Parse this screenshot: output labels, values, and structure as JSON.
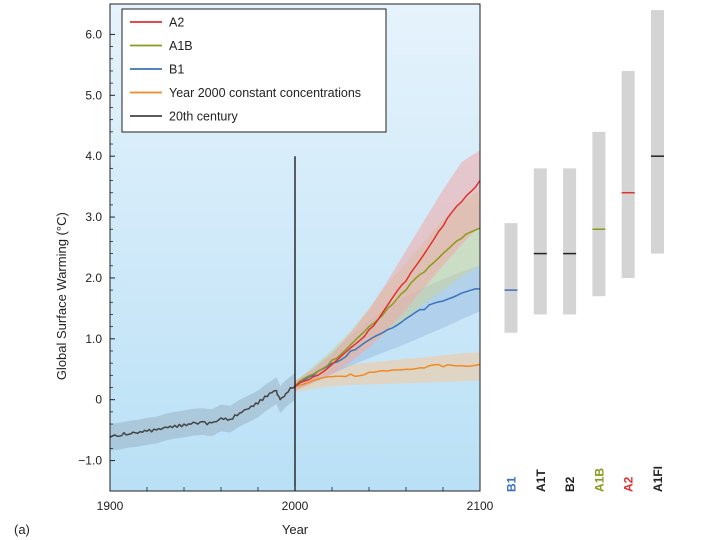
{
  "chart_data": {
    "type": "line",
    "panel_label": "(a)",
    "xlabel": "Year",
    "ylabel": "Global Surface Warming (°C)",
    "xlim": [
      1900,
      2100
    ],
    "ylim": [
      -1.5,
      6.5
    ],
    "x_ticks": [
      {
        "value": 1900,
        "label": "1900"
      },
      {
        "value": 2000,
        "label": "2000"
      },
      {
        "value": 2100,
        "label": "2100"
      }
    ],
    "x_minor_ticks": [
      1920,
      1940,
      1960,
      1980,
      2020,
      2040,
      2060,
      2080
    ],
    "y_ticks": [
      {
        "value": -1.0,
        "label": "−1.0"
      },
      {
        "value": 0,
        "label": "0"
      },
      {
        "value": 1.0,
        "label": "1.0"
      },
      {
        "value": 2.0,
        "label": "2.0"
      },
      {
        "value": 3.0,
        "label": "3.0"
      },
      {
        "value": 4.0,
        "label": "4.0"
      },
      {
        "value": 5.0,
        "label": "5.0"
      },
      {
        "value": 6.0,
        "label": "6.0"
      }
    ],
    "divider_year": 2000,
    "divider_top": 4.0,
    "legend": [
      {
        "label": "A2",
        "color": "#e03131"
      },
      {
        "label": "A1B",
        "color": "#8a9a1b"
      },
      {
        "label": "B1",
        "color": "#3b73b9"
      },
      {
        "label": "Year 2000 constant concentrations",
        "color": "#f08a24"
      },
      {
        "label": "20th century",
        "color": "#444444"
      }
    ],
    "series": [
      {
        "name": "20th century",
        "color": "#444444",
        "band": "#9bb3c4",
        "uncertainty": 0.22,
        "x": [
          1900,
          1905,
          1910,
          1915,
          1920,
          1925,
          1930,
          1935,
          1940,
          1945,
          1950,
          1955,
          1960,
          1965,
          1970,
          1975,
          1980,
          1985,
          1990,
          1992,
          1995,
          2000
        ],
        "y": [
          -0.62,
          -0.6,
          -0.57,
          -0.55,
          -0.52,
          -0.5,
          -0.45,
          -0.42,
          -0.4,
          -0.37,
          -0.36,
          -0.38,
          -0.3,
          -0.32,
          -0.22,
          -0.15,
          -0.07,
          0.05,
          0.15,
          0.0,
          0.1,
          0.22
        ]
      },
      {
        "name": "Year 2000 constant concentrations",
        "color": "#f08a24",
        "band": "#f6c89a",
        "x": [
          2000,
          2010,
          2020,
          2030,
          2040,
          2050,
          2060,
          2070,
          2080,
          2090,
          2100
        ],
        "y": [
          0.22,
          0.32,
          0.38,
          0.42,
          0.45,
          0.47,
          0.5,
          0.52,
          0.54,
          0.56,
          0.58
        ],
        "lower": [
          0.12,
          0.18,
          0.22,
          0.24,
          0.25,
          0.26,
          0.27,
          0.28,
          0.29,
          0.3,
          0.32
        ],
        "upper": [
          0.32,
          0.45,
          0.52,
          0.57,
          0.61,
          0.64,
          0.67,
          0.7,
          0.73,
          0.76,
          0.78
        ]
      },
      {
        "name": "B1",
        "color": "#3b73b9",
        "band": "#9cbde0",
        "x": [
          2000,
          2010,
          2020,
          2030,
          2040,
          2050,
          2060,
          2070,
          2080,
          2090,
          2100
        ],
        "y": [
          0.22,
          0.4,
          0.6,
          0.8,
          0.98,
          1.15,
          1.33,
          1.48,
          1.62,
          1.75,
          1.82
        ],
        "lower": [
          0.15,
          0.28,
          0.42,
          0.56,
          0.68,
          0.8,
          0.92,
          1.05,
          1.18,
          1.32,
          1.45
        ],
        "upper": [
          0.3,
          0.52,
          0.78,
          1.05,
          1.3,
          1.52,
          1.7,
          1.85,
          1.98,
          2.1,
          2.2
        ]
      },
      {
        "name": "A1B",
        "color": "#8a9a1b",
        "band": "#c9d49a",
        "x": [
          2000,
          2010,
          2020,
          2030,
          2040,
          2050,
          2060,
          2070,
          2080,
          2090,
          2100
        ],
        "y": [
          0.22,
          0.42,
          0.65,
          0.9,
          1.2,
          1.5,
          1.8,
          2.1,
          2.4,
          2.65,
          2.82
        ],
        "lower": [
          0.15,
          0.3,
          0.48,
          0.68,
          0.9,
          1.12,
          1.35,
          1.58,
          1.8,
          2.02,
          2.2
        ],
        "upper": [
          0.3,
          0.55,
          0.82,
          1.12,
          1.5,
          1.9,
          2.25,
          2.6,
          2.95,
          3.25,
          3.45
        ]
      },
      {
        "name": "A2",
        "color": "#e03131",
        "band": "#f0a8a8",
        "x": [
          2000,
          2010,
          2020,
          2030,
          2040,
          2050,
          2060,
          2070,
          2080,
          2090,
          2100
        ],
        "y": [
          0.22,
          0.38,
          0.58,
          0.85,
          1.15,
          1.55,
          1.95,
          2.4,
          2.85,
          3.25,
          3.6
        ],
        "lower": [
          0.15,
          0.28,
          0.42,
          0.62,
          0.85,
          1.15,
          1.48,
          1.85,
          2.2,
          2.55,
          2.85
        ],
        "upper": [
          0.3,
          0.5,
          0.75,
          1.1,
          1.48,
          1.95,
          2.45,
          2.95,
          3.45,
          3.9,
          4.1
        ]
      }
    ],
    "scenario_ranges": [
      {
        "name": "B1",
        "color": "#3b73b9",
        "low": 1.1,
        "high": 2.9,
        "best": 1.8
      },
      {
        "name": "A1T",
        "color": "#222222",
        "low": 1.4,
        "high": 3.8,
        "best": 2.4
      },
      {
        "name": "B2",
        "color": "#222222",
        "low": 1.4,
        "high": 3.8,
        "best": 2.4
      },
      {
        "name": "A1B",
        "color": "#8a9a1b",
        "low": 1.7,
        "high": 4.4,
        "best": 2.8
      },
      {
        "name": "A2",
        "color": "#e03131",
        "low": 2.0,
        "high": 5.4,
        "best": 3.4
      },
      {
        "name": "A1FI",
        "color": "#222222",
        "low": 2.4,
        "high": 6.4,
        "best": 4.0
      }
    ]
  }
}
